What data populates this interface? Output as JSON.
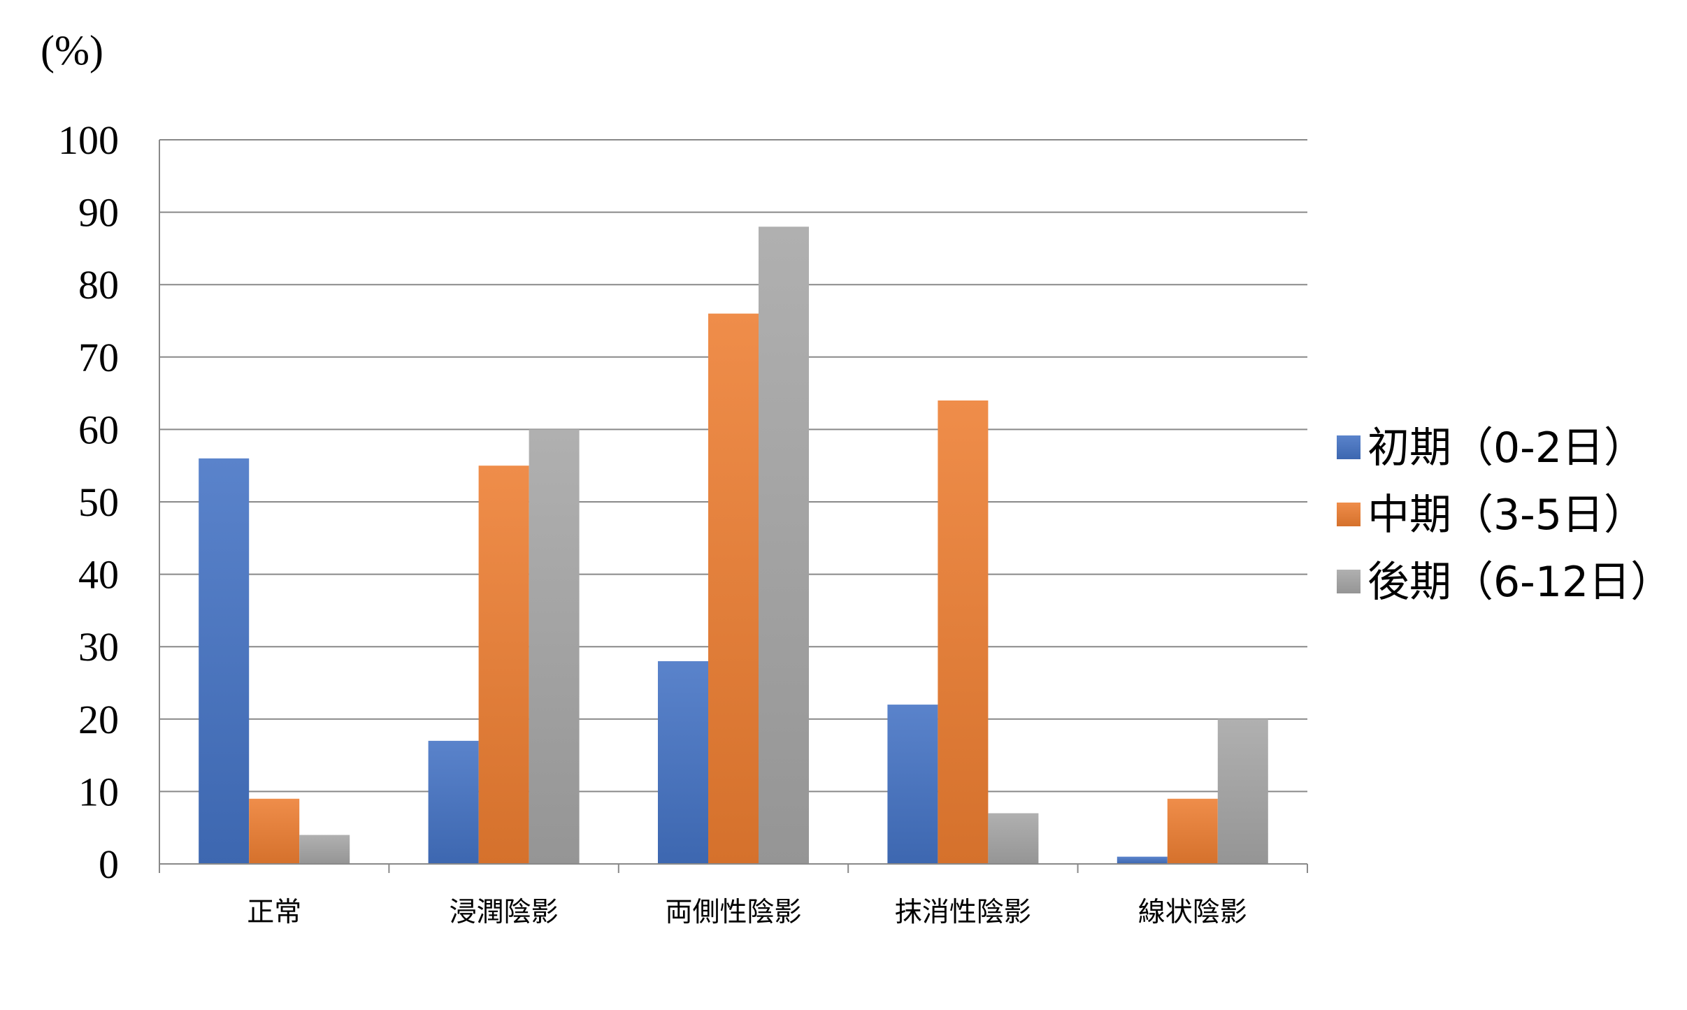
{
  "chart_data": {
    "type": "bar",
    "categories": [
      "正常",
      "浸潤陰影",
      "両側性陰影",
      "抹消性陰影",
      "線状陰影"
    ],
    "series": [
      {
        "name": "初期（0-2日）",
        "values": [
          56,
          17,
          28,
          22,
          1
        ],
        "color": "#4472C4"
      },
      {
        "name": "中期（3-5日）",
        "values": [
          9,
          55,
          76,
          64,
          9
        ],
        "color": "#ED7D31"
      },
      {
        "name": "後期（6-12日）",
        "values": [
          4,
          60,
          88,
          7,
          20
        ],
        "color": "#A5A5A5"
      }
    ],
    "ylabel": "(%)",
    "ylim": [
      0,
      100
    ],
    "yticks": [
      0,
      10,
      20,
      30,
      40,
      50,
      60,
      70,
      80,
      90,
      100
    ],
    "grid": true,
    "legend_position": "right"
  }
}
